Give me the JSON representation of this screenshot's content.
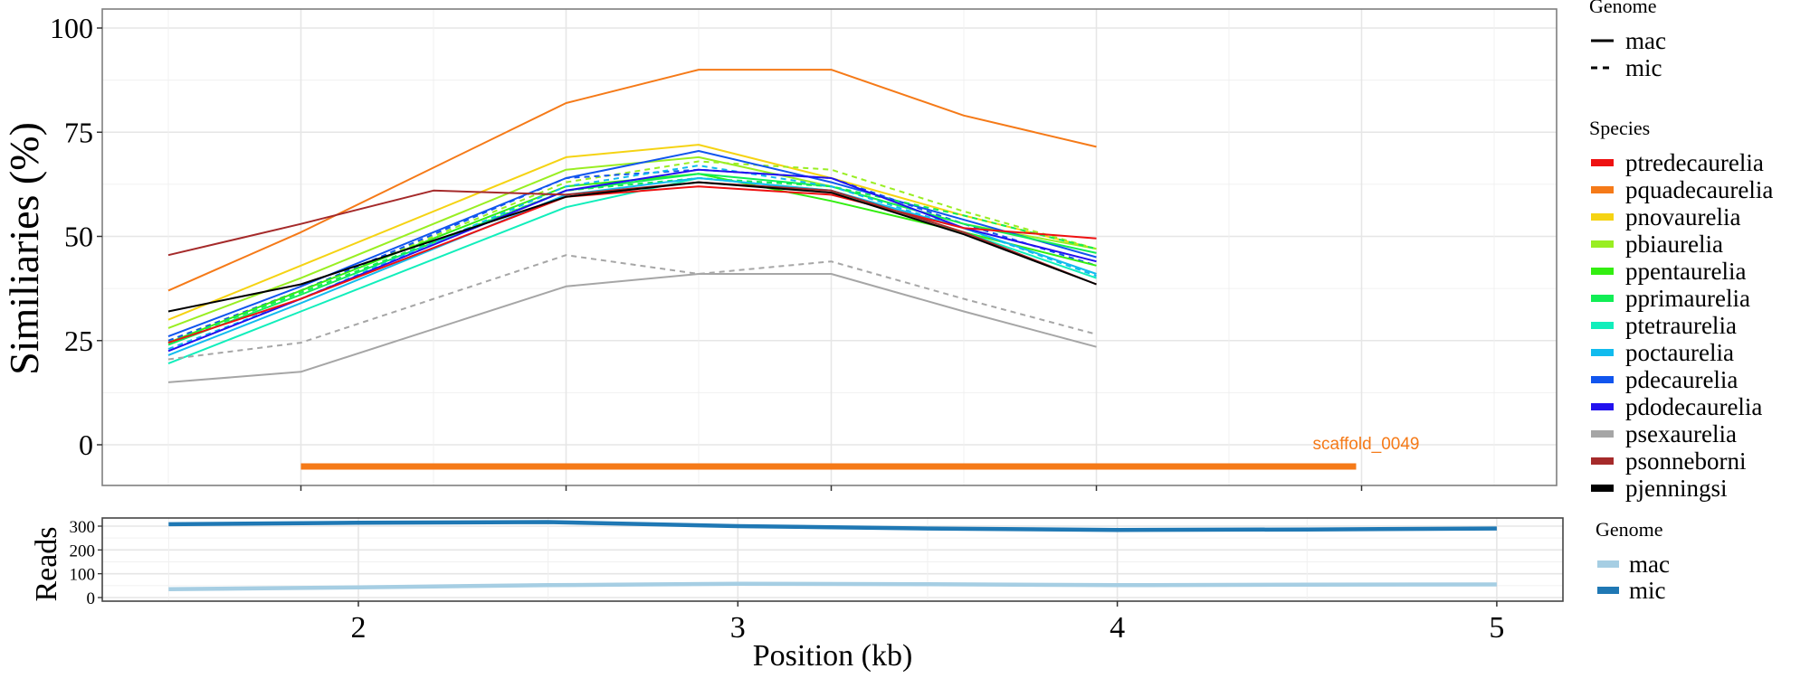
{
  "chart_data": [
    {
      "type": "line",
      "panel": "similarity",
      "title": "",
      "xlabel": "",
      "ylabel": "Similiaries (%)",
      "ylim": [
        -10,
        104
      ],
      "yticks": [
        0,
        25,
        50,
        75,
        100
      ],
      "ytick_labels": [
        "0",
        "25",
        "50",
        "75",
        "100"
      ],
      "x_windows": [
        1,
        2,
        4,
        5,
        6,
        7,
        8
      ],
      "x_window_note": "window index along scaffold (major ticks unlabeled)",
      "xlim_windows": [
        -0.0,
        10.3
      ],
      "grid": true,
      "linetype_legend": {
        "title": "Genome",
        "entries": [
          {
            "label": "mac",
            "linetype": "solid"
          },
          {
            "label": "mic",
            "linetype": "dashed"
          }
        ]
      },
      "color_legend": {
        "title": "Species",
        "placement": "right",
        "entries": [
          {
            "label": "ptredecaurelia",
            "color": "#ee1111"
          },
          {
            "label": "pquadecaurelia",
            "color": "#f57a18"
          },
          {
            "label": "pnovaurelia",
            "color": "#f5d313"
          },
          {
            "label": "pbiaurelia",
            "color": "#99ee22"
          },
          {
            "label": "ppentaurelia",
            "color": "#33ee11"
          },
          {
            "label": "pprimaurelia",
            "color": "#11ee55"
          },
          {
            "label": "ptetraurelia",
            "color": "#11eebb"
          },
          {
            "label": "poctaurelia",
            "color": "#11bbee"
          },
          {
            "label": "pdecaurelia",
            "color": "#1155ee"
          },
          {
            "label": "pdodecaurelia",
            "color": "#2211ee"
          },
          {
            "label": "psexaurelia",
            "color": "#a6a6a6"
          },
          {
            "label": "psonneborni",
            "color": "#a52a2a"
          },
          {
            "label": "pjenningsi",
            "color": "#000000"
          }
        ]
      },
      "series": [
        {
          "name": "pquadecaurelia",
          "genome": "mac",
          "color": "#f57a18",
          "dash": false,
          "x": [
            1,
            2,
            4,
            5,
            6,
            7,
            8
          ],
          "values": [
            37,
            51,
            82,
            90,
            90,
            79,
            71.5
          ]
        },
        {
          "name": "pnovaurelia",
          "genome": "mac",
          "color": "#f5d313",
          "dash": false,
          "x": [
            1,
            2,
            4,
            5,
            6,
            7,
            8
          ],
          "values": [
            30,
            43,
            69,
            72,
            64,
            55,
            47
          ]
        },
        {
          "name": "pbiaurelia",
          "genome": "mac",
          "color": "#99ee22",
          "dash": false,
          "x": [
            1,
            2,
            4,
            5,
            6,
            7,
            8
          ],
          "values": [
            28,
            40,
            66,
            69,
            62,
            53,
            47
          ]
        },
        {
          "name": "pbiaurelia",
          "genome": "mic",
          "color": "#99ee22",
          "dash": true,
          "x": [
            1,
            2,
            4,
            5,
            6,
            7,
            8
          ],
          "values": [
            25,
            37,
            63,
            68,
            66,
            56,
            47
          ]
        },
        {
          "name": "pdecaurelia",
          "genome": "mac",
          "color": "#1155ee",
          "dash": false,
          "x": [
            1,
            2,
            4,
            5,
            6,
            7,
            8
          ],
          "values": [
            26,
            38,
            64,
            70.5,
            63,
            54,
            45
          ]
        },
        {
          "name": "pdecaurelia",
          "genome": "mic",
          "color": "#1155ee",
          "dash": true,
          "x": [
            1,
            2,
            4,
            5,
            6,
            7,
            8
          ],
          "values": [
            25,
            37,
            64,
            66,
            64,
            53,
            43
          ]
        },
        {
          "name": "ppentaurelia",
          "genome": "mac",
          "color": "#33ee11",
          "dash": false,
          "x": [
            1,
            2,
            4,
            5,
            6,
            7,
            8
          ],
          "values": [
            24.5,
            37,
            62,
            65,
            58.5,
            51,
            43
          ]
        },
        {
          "name": "pprimaurelia",
          "genome": "mac",
          "color": "#11ee55",
          "dash": false,
          "x": [
            1,
            2,
            4,
            5,
            6,
            7,
            8
          ],
          "values": [
            24,
            36,
            61,
            65,
            62,
            53,
            46
          ]
        },
        {
          "name": "pprimaurelia",
          "genome": "mic",
          "color": "#11ee55",
          "dash": true,
          "x": [
            1,
            2,
            4,
            5,
            6,
            7,
            8
          ],
          "values": [
            24.5,
            36.5,
            61,
            64,
            62,
            55,
            47
          ]
        },
        {
          "name": "ptetraurelia",
          "genome": "mac",
          "color": "#11eebb",
          "dash": false,
          "x": [
            1,
            2,
            4,
            5,
            6,
            7,
            8
          ],
          "values": [
            19.5,
            32,
            57,
            64,
            61,
            51,
            40
          ]
        },
        {
          "name": "poctaurelia",
          "genome": "mac",
          "color": "#11bbee",
          "dash": false,
          "x": [
            1,
            2,
            4,
            5,
            6,
            7,
            8
          ],
          "values": [
            21.5,
            34,
            60,
            64,
            61,
            52,
            41
          ]
        },
        {
          "name": "poctaurelia",
          "genome": "mic",
          "color": "#11bbee",
          "dash": true,
          "x": [
            1,
            2,
            4,
            5,
            6,
            7,
            8
          ],
          "values": [
            23,
            35,
            62,
            67,
            62,
            52,
            40.5
          ]
        },
        {
          "name": "pdodecaurelia",
          "genome": "mac",
          "color": "#2211ee",
          "dash": false,
          "x": [
            1,
            2,
            4,
            5,
            6,
            7,
            8
          ],
          "values": [
            22.5,
            35,
            61,
            66,
            64,
            52,
            44
          ]
        },
        {
          "name": "ptredecaurelia",
          "genome": "mac",
          "color": "#ee1111",
          "dash": false,
          "x": [
            1,
            2,
            4,
            5,
            6,
            7,
            8
          ],
          "values": [
            24.5,
            35,
            59.5,
            62,
            60,
            52,
            49.5
          ]
        },
        {
          "name": "psonneborni",
          "genome": "mac",
          "color": "#a52a2a",
          "dash": false,
          "x": [
            1,
            2,
            3,
            4,
            5,
            6,
            7,
            8
          ],
          "values": [
            45.5,
            53,
            61,
            60,
            63,
            61,
            51,
            38.5
          ]
        },
        {
          "name": "pjenningsi",
          "genome": "mac",
          "color": "#000000",
          "dash": false,
          "x": [
            1,
            2,
            4,
            5,
            6,
            7,
            8
          ],
          "values": [
            32,
            38.5,
            59.5,
            63,
            60.5,
            50.5,
            38.5
          ]
        },
        {
          "name": "psexaurelia",
          "genome": "mac",
          "color": "#a6a6a6",
          "dash": false,
          "x": [
            1,
            2,
            4,
            5,
            6,
            7,
            8
          ],
          "values": [
            15,
            17.5,
            38,
            41,
            41,
            32,
            23.5
          ]
        },
        {
          "name": "psexaurelia",
          "genome": "mic",
          "color": "#a6a6a6",
          "dash": true,
          "x": [
            1,
            2,
            4,
            5,
            6,
            7,
            8
          ],
          "values": [
            20.5,
            24.5,
            45.5,
            41,
            44,
            35,
            26.5
          ]
        }
      ],
      "annotation": {
        "label": "scaffold_0049",
        "color": "#f57a18",
        "type": "segment",
        "y": -5,
        "x_start": 2,
        "x_end": 10
      }
    },
    {
      "type": "line",
      "panel": "reads",
      "title": "",
      "xlabel": "Position (kb)",
      "ylabel": "Reads",
      "xlim": [
        1.33,
        5.13
      ],
      "xticks": [
        2,
        3,
        4,
        5
      ],
      "xtick_labels": [
        "2",
        "3",
        "4",
        "5"
      ],
      "ylim": [
        -10,
        330
      ],
      "yticks": [
        0,
        100,
        200,
        300
      ],
      "ytick_labels": [
        "0",
        "100",
        "200",
        "300"
      ],
      "grid": true,
      "legend": {
        "title": "Genome",
        "placement": "right",
        "entries": [
          {
            "label": "mac",
            "color": "#a6cee3"
          },
          {
            "label": "mic",
            "color": "#1f78b4"
          }
        ]
      },
      "series": [
        {
          "name": "mac",
          "color": "#a6cee3",
          "x": [
            1.5,
            2.0,
            2.5,
            3.0,
            3.5,
            4.0,
            4.5,
            5.0
          ],
          "values": [
            35,
            43,
            52,
            58,
            56,
            52,
            54,
            55
          ]
        },
        {
          "name": "mic",
          "color": "#1f78b4",
          "x": [
            1.5,
            2.0,
            2.5,
            3.0,
            3.5,
            4.0,
            4.5,
            5.0
          ],
          "values": [
            308,
            314,
            317,
            300,
            290,
            284,
            286,
            290
          ]
        }
      ]
    }
  ]
}
